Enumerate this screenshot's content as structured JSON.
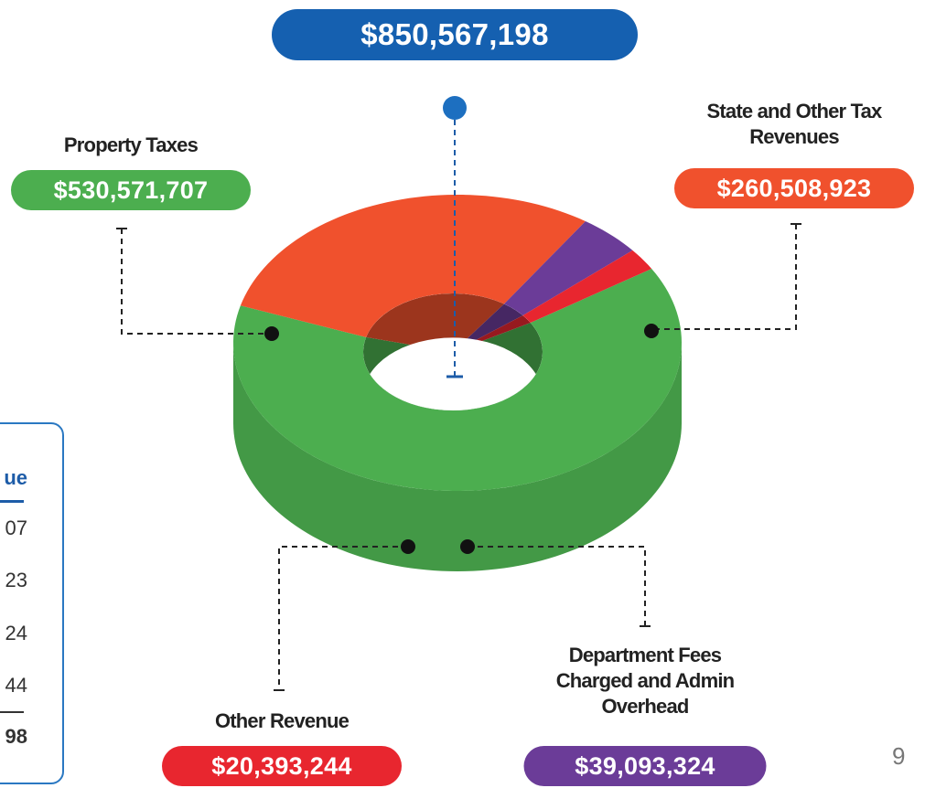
{
  "chart_data": {
    "type": "donut",
    "total": {
      "value": 850567198,
      "label": "$850,567,198"
    },
    "categories": [
      "Property Taxes",
      "State and Other Tax Revenues",
      "Department Fees Charged and Admin Overhead",
      "Other Revenue"
    ],
    "values": [
      530571707,
      260508923,
      39093324,
      20393244
    ],
    "value_labels": [
      "$530,571,707",
      "$260,508,923",
      "$39,093,324",
      "$20,393,244"
    ],
    "colors": [
      "#4cae4f",
      "#f0512d",
      "#6b3c98",
      "#e8262f"
    ]
  },
  "table_fragment": {
    "header": "ue",
    "rows": [
      "07",
      "23",
      "24",
      "44"
    ],
    "total": "98"
  },
  "page_number": "9"
}
